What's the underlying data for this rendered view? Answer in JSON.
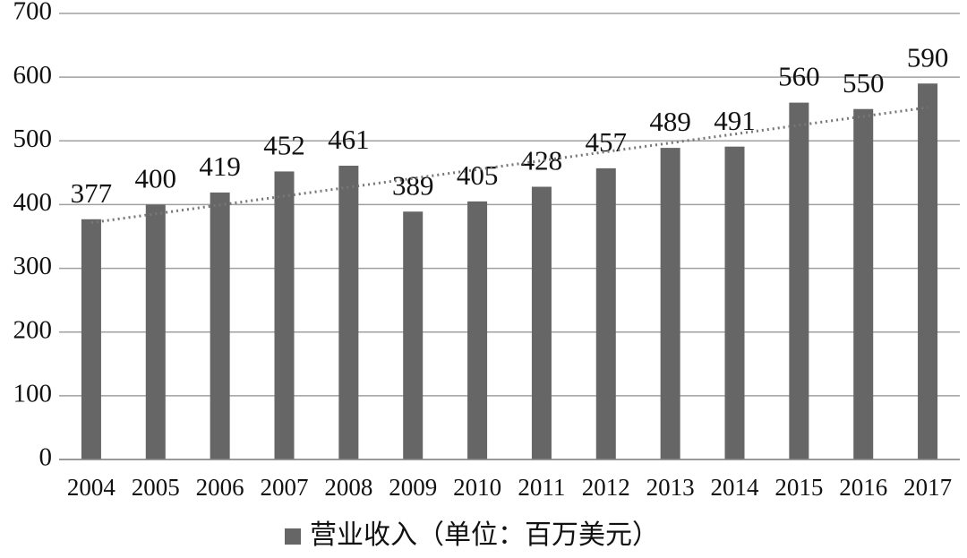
{
  "chart_data": {
    "type": "bar",
    "categories": [
      "2004",
      "2005",
      "2006",
      "2007",
      "2008",
      "2009",
      "2010",
      "2011",
      "2012",
      "2013",
      "2014",
      "2015",
      "2016",
      "2017"
    ],
    "series": [
      {
        "name": "营业收入（单位：百万美元）",
        "color": "#666666",
        "values": [
          377,
          400,
          419,
          452,
          461,
          389,
          405,
          428,
          457,
          489,
          491,
          560,
          550,
          590
        ]
      }
    ],
    "ylim": [
      0,
      700
    ],
    "yticks": [
      0,
      100,
      200,
      300,
      400,
      500,
      600,
      700
    ],
    "grid": true,
    "trendline": true,
    "legend": "bottom"
  }
}
